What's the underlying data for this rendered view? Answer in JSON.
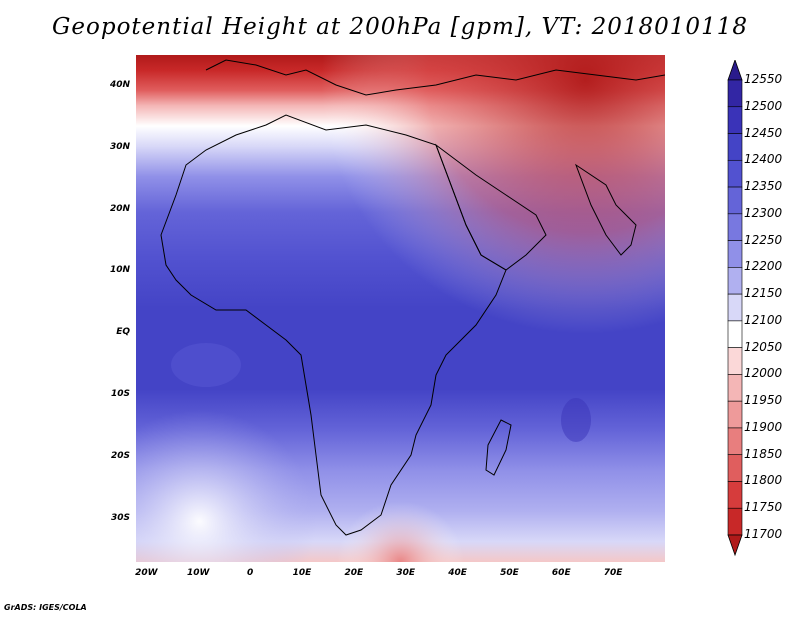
{
  "title": "Geopotential Height at 200hPa [gpm], VT: 2018010118",
  "map": {
    "lon_range": [
      -22,
      80
    ],
    "lat_range": [
      -37,
      45
    ],
    "lat_labels": [
      "40N",
      "30N",
      "20N",
      "10N",
      "EQ",
      "10S",
      "20S",
      "30S"
    ],
    "lat_values": [
      40,
      30,
      20,
      10,
      0,
      -10,
      -20,
      -30
    ],
    "lon_labels": [
      "20W",
      "10W",
      "0",
      "10E",
      "20E",
      "30E",
      "40E",
      "50E",
      "60E",
      "70E"
    ],
    "lon_values": [
      -20,
      -10,
      0,
      10,
      20,
      30,
      40,
      50,
      60,
      70
    ]
  },
  "colorbar": {
    "levels": [
      "12550",
      "12500",
      "12450",
      "12400",
      "12350",
      "12300",
      "12250",
      "12200",
      "12150",
      "12100",
      "12050",
      "12000",
      "11950",
      "11900",
      "11850",
      "11800",
      "11750",
      "11700"
    ],
    "colors": [
      "#2a1b8c",
      "#3226a4",
      "#3a33b8",
      "#4444c6",
      "#5252d0",
      "#6464d8",
      "#7878e0",
      "#9090e8",
      "#b0b0f0",
      "#d8d8f8",
      "#ffffff",
      "#fbd8d8",
      "#f4b6b6",
      "#ee9a9a",
      "#e87e7e",
      "#e05e5e",
      "#d63c3c",
      "#c82828",
      "#b01a1a"
    ]
  },
  "footer": "GrADS: IGES/COLA"
}
